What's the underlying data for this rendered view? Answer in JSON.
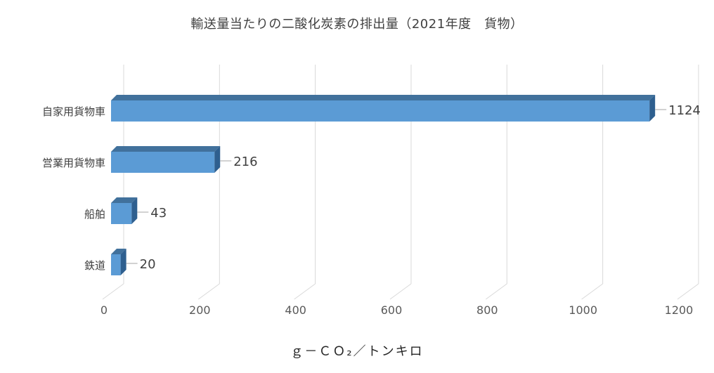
{
  "chart_data": {
    "type": "bar",
    "orientation": "horizontal",
    "style": "3d",
    "title": "輸送量当たりの二酸化炭素の排出量（2021年度　貨物）",
    "xlabel": "ｇ－ＣＯ₂／トンキロ",
    "ylabel": "",
    "categories": [
      "自家用貨物車",
      "営業用貨物車",
      "船舶",
      "鉄道"
    ],
    "values": [
      1124,
      216,
      43,
      20
    ],
    "xlim": [
      0,
      1200
    ],
    "xticks": [
      0,
      200,
      400,
      600,
      800,
      1000,
      1200
    ],
    "grid": true,
    "legend": "none",
    "bar_color": "#5b9bd5",
    "bar_top_color": "#41719c",
    "bar_side_color": "#2e5f8f"
  }
}
